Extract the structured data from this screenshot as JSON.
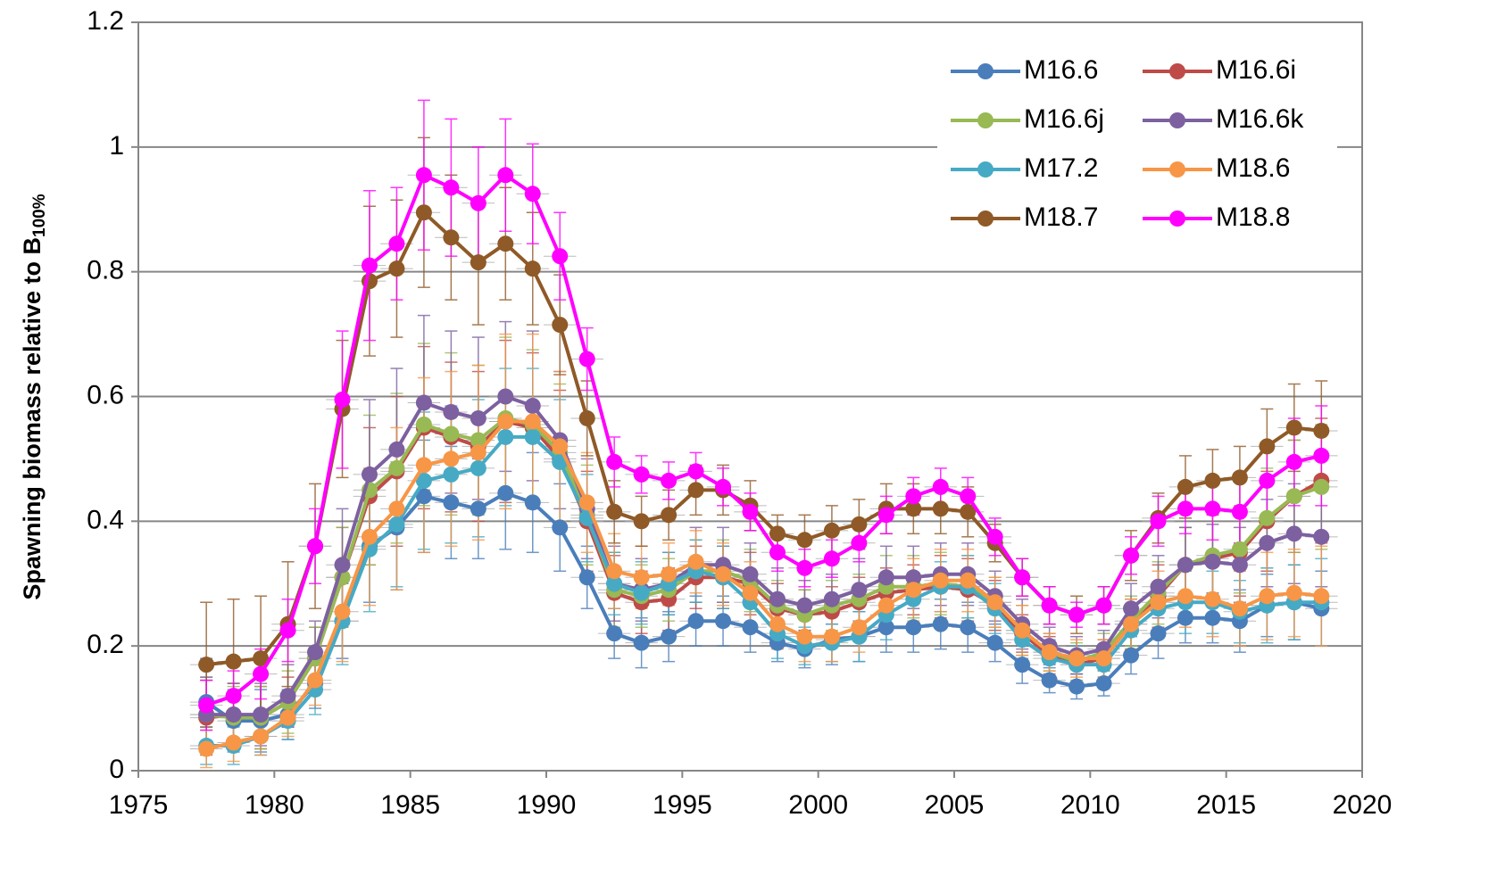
{
  "chart_data": {
    "type": "line",
    "ylabel": "Spawning biomass relative to B",
    "ylabel_subscript": "100%",
    "x": [
      1977.5,
      1978.5,
      1979.5,
      1980.5,
      1981.5,
      1982.5,
      1983.5,
      1984.5,
      1985.5,
      1986.5,
      1987.5,
      1988.5,
      1989.5,
      1990.5,
      1991.5,
      1992.5,
      1993.5,
      1994.5,
      1995.5,
      1996.5,
      1997.5,
      1998.5,
      1999.5,
      2000.5,
      2001.5,
      2002.5,
      2003.5,
      2004.5,
      2005.5,
      2006.5,
      2007.5,
      2008.5,
      2009.5,
      2010.5,
      2011.5,
      2012.5,
      2013.5,
      2014.5,
      2015.5,
      2016.5,
      2017.5,
      2018.5
    ],
    "x_error": 0.6,
    "xlim": [
      1975,
      2020
    ],
    "xticks": [
      1975,
      1980,
      1985,
      1990,
      1995,
      2000,
      2005,
      2010,
      2015,
      2020
    ],
    "ylim": [
      0,
      1.2
    ],
    "yticks": [
      0,
      0.2,
      0.4,
      0.6,
      0.8,
      1,
      1.2
    ],
    "grid": true,
    "legend": "upper right",
    "series": [
      {
        "name": "M16.6",
        "color": "#4a7ebb",
        "values": [
          0.11,
          0.08,
          0.08,
          0.09,
          0.14,
          0.24,
          0.36,
          0.39,
          0.44,
          0.43,
          0.42,
          0.445,
          0.43,
          0.39,
          0.31,
          0.22,
          0.205,
          0.215,
          0.24,
          0.24,
          0.23,
          0.205,
          0.195,
          0.21,
          0.215,
          0.23,
          0.23,
          0.235,
          0.23,
          0.205,
          0.17,
          0.145,
          0.135,
          0.14,
          0.185,
          0.22,
          0.245,
          0.245,
          0.24,
          0.265,
          0.27,
          0.26
        ],
        "errors": [
          0.07,
          0.05,
          0.05,
          0.04,
          0.04,
          0.06,
          0.09,
          0.1,
          0.09,
          0.09,
          0.08,
          0.09,
          0.08,
          0.07,
          0.05,
          0.04,
          0.04,
          0.04,
          0.04,
          0.04,
          0.04,
          0.03,
          0.03,
          0.04,
          0.04,
          0.04,
          0.04,
          0.04,
          0.04,
          0.03,
          0.03,
          0.02,
          0.02,
          0.02,
          0.03,
          0.04,
          0.04,
          0.04,
          0.05,
          0.05,
          0.06,
          0.06
        ]
      },
      {
        "name": "M16.6i",
        "color": "#be4b48",
        "values": [
          0.085,
          0.09,
          0.085,
          0.11,
          0.18,
          0.31,
          0.44,
          0.48,
          0.55,
          0.535,
          0.52,
          0.56,
          0.55,
          0.5,
          0.4,
          0.285,
          0.27,
          0.275,
          0.31,
          0.31,
          0.3,
          0.26,
          0.25,
          0.255,
          0.27,
          0.285,
          0.29,
          0.295,
          0.29,
          0.265,
          0.22,
          0.185,
          0.17,
          0.18,
          0.235,
          0.28,
          0.33,
          0.34,
          0.35,
          0.4,
          0.44,
          0.465
        ],
        "errors": [
          0.06,
          0.05,
          0.05,
          0.04,
          0.05,
          0.08,
          0.11,
          0.12,
          0.13,
          0.12,
          0.12,
          0.13,
          0.12,
          0.11,
          0.08,
          0.06,
          0.05,
          0.05,
          0.05,
          0.05,
          0.05,
          0.04,
          0.04,
          0.04,
          0.04,
          0.04,
          0.04,
          0.05,
          0.05,
          0.04,
          0.03,
          0.03,
          0.03,
          0.03,
          0.04,
          0.05,
          0.06,
          0.07,
          0.07,
          0.08,
          0.09,
          0.1
        ]
      },
      {
        "name": "M16.6j",
        "color": "#98b954",
        "values": [
          0.09,
          0.085,
          0.085,
          0.11,
          0.18,
          0.31,
          0.45,
          0.485,
          0.555,
          0.54,
          0.53,
          0.565,
          0.555,
          0.51,
          0.41,
          0.29,
          0.28,
          0.29,
          0.32,
          0.32,
          0.305,
          0.265,
          0.25,
          0.265,
          0.275,
          0.295,
          0.295,
          0.3,
          0.295,
          0.27,
          0.225,
          0.19,
          0.175,
          0.19,
          0.24,
          0.285,
          0.33,
          0.345,
          0.355,
          0.405,
          0.44,
          0.455
        ],
        "errors": [
          0.06,
          0.05,
          0.05,
          0.05,
          0.05,
          0.08,
          0.12,
          0.12,
          0.13,
          0.13,
          0.12,
          0.13,
          0.12,
          0.11,
          0.08,
          0.06,
          0.05,
          0.05,
          0.05,
          0.05,
          0.05,
          0.04,
          0.04,
          0.04,
          0.04,
          0.05,
          0.05,
          0.05,
          0.05,
          0.04,
          0.04,
          0.03,
          0.03,
          0.03,
          0.04,
          0.05,
          0.06,
          0.07,
          0.07,
          0.08,
          0.09,
          0.1
        ]
      },
      {
        "name": "M16.6k",
        "color": "#7d60a0",
        "values": [
          0.09,
          0.09,
          0.09,
          0.12,
          0.19,
          0.33,
          0.475,
          0.515,
          0.59,
          0.575,
          0.565,
          0.6,
          0.585,
          0.53,
          0.42,
          0.3,
          0.29,
          0.3,
          0.33,
          0.33,
          0.315,
          0.275,
          0.265,
          0.275,
          0.29,
          0.31,
          0.31,
          0.315,
          0.315,
          0.28,
          0.235,
          0.2,
          0.185,
          0.195,
          0.26,
          0.295,
          0.33,
          0.335,
          0.33,
          0.365,
          0.38,
          0.375
        ],
        "errors": [
          0.06,
          0.05,
          0.05,
          0.05,
          0.05,
          0.09,
          0.12,
          0.13,
          0.14,
          0.13,
          0.13,
          0.12,
          0.12,
          0.11,
          0.08,
          0.06,
          0.05,
          0.05,
          0.06,
          0.06,
          0.05,
          0.05,
          0.04,
          0.04,
          0.05,
          0.05,
          0.05,
          0.05,
          0.05,
          0.04,
          0.04,
          0.03,
          0.03,
          0.03,
          0.04,
          0.05,
          0.06,
          0.06,
          0.06,
          0.07,
          0.08,
          0.08
        ]
      },
      {
        "name": "M17.2",
        "color": "#46aac5",
        "values": [
          0.04,
          0.04,
          0.055,
          0.08,
          0.13,
          0.24,
          0.355,
          0.395,
          0.465,
          0.475,
          0.485,
          0.535,
          0.535,
          0.495,
          0.405,
          0.3,
          0.285,
          0.3,
          0.32,
          0.31,
          0.27,
          0.22,
          0.2,
          0.205,
          0.215,
          0.25,
          0.275,
          0.295,
          0.295,
          0.26,
          0.21,
          0.18,
          0.17,
          0.17,
          0.225,
          0.26,
          0.27,
          0.27,
          0.255,
          0.265,
          0.27,
          0.27
        ],
        "errors": [
          0.03,
          0.03,
          0.03,
          0.03,
          0.04,
          0.07,
          0.1,
          0.1,
          0.11,
          0.11,
          0.11,
          0.11,
          0.11,
          0.1,
          0.07,
          0.05,
          0.05,
          0.05,
          0.05,
          0.05,
          0.04,
          0.04,
          0.03,
          0.03,
          0.04,
          0.04,
          0.04,
          0.04,
          0.05,
          0.04,
          0.03,
          0.03,
          0.03,
          0.03,
          0.04,
          0.04,
          0.05,
          0.05,
          0.05,
          0.06,
          0.06,
          0.07
        ]
      },
      {
        "name": "M18.6",
        "color": "#f79646",
        "values": [
          0.035,
          0.045,
          0.055,
          0.085,
          0.145,
          0.255,
          0.375,
          0.42,
          0.49,
          0.5,
          0.51,
          0.56,
          0.56,
          0.52,
          0.43,
          0.32,
          0.31,
          0.315,
          0.335,
          0.315,
          0.285,
          0.235,
          0.215,
          0.215,
          0.23,
          0.265,
          0.29,
          0.305,
          0.305,
          0.27,
          0.225,
          0.19,
          0.18,
          0.18,
          0.235,
          0.27,
          0.28,
          0.275,
          0.26,
          0.28,
          0.285,
          0.28
        ],
        "errors": [
          0.03,
          0.03,
          0.03,
          0.03,
          0.04,
          0.08,
          0.11,
          0.13,
          0.14,
          0.14,
          0.14,
          0.14,
          0.14,
          0.12,
          0.08,
          0.06,
          0.05,
          0.05,
          0.05,
          0.05,
          0.05,
          0.04,
          0.04,
          0.04,
          0.04,
          0.04,
          0.05,
          0.05,
          0.05,
          0.04,
          0.04,
          0.03,
          0.03,
          0.03,
          0.04,
          0.05,
          0.05,
          0.06,
          0.06,
          0.07,
          0.07,
          0.08
        ]
      },
      {
        "name": "M18.7",
        "color": "#8f5a27",
        "values": [
          0.17,
          0.175,
          0.18,
          0.235,
          0.36,
          0.58,
          0.785,
          0.805,
          0.895,
          0.855,
          0.815,
          0.845,
          0.805,
          0.715,
          0.565,
          0.415,
          0.4,
          0.41,
          0.45,
          0.45,
          0.425,
          0.38,
          0.37,
          0.385,
          0.395,
          0.42,
          0.42,
          0.42,
          0.415,
          0.365,
          0.31,
          0.265,
          0.25,
          0.265,
          0.345,
          0.405,
          0.455,
          0.465,
          0.47,
          0.52,
          0.55,
          0.545
        ],
        "errors": [
          0.1,
          0.1,
          0.1,
          0.1,
          0.1,
          0.11,
          0.12,
          0.11,
          0.12,
          0.1,
          0.1,
          0.09,
          0.09,
          0.08,
          0.06,
          0.05,
          0.04,
          0.04,
          0.04,
          0.04,
          0.04,
          0.03,
          0.04,
          0.04,
          0.04,
          0.04,
          0.04,
          0.04,
          0.04,
          0.03,
          0.03,
          0.03,
          0.03,
          0.03,
          0.04,
          0.04,
          0.05,
          0.05,
          0.05,
          0.06,
          0.07,
          0.08
        ]
      },
      {
        "name": "M18.8",
        "color": "#ff00ff",
        "values": [
          0.105,
          0.12,
          0.155,
          0.225,
          0.36,
          0.595,
          0.81,
          0.845,
          0.955,
          0.935,
          0.91,
          0.955,
          0.925,
          0.825,
          0.66,
          0.495,
          0.475,
          0.465,
          0.48,
          0.455,
          0.415,
          0.35,
          0.325,
          0.34,
          0.365,
          0.41,
          0.44,
          0.455,
          0.44,
          0.375,
          0.31,
          0.265,
          0.25,
          0.265,
          0.345,
          0.4,
          0.42,
          0.42,
          0.415,
          0.465,
          0.495,
          0.505
        ],
        "errors": [
          0.04,
          0.04,
          0.04,
          0.05,
          0.06,
          0.11,
          0.12,
          0.09,
          0.12,
          0.11,
          0.09,
          0.09,
          0.08,
          0.07,
          0.05,
          0.04,
          0.03,
          0.03,
          0.03,
          0.03,
          0.03,
          0.03,
          0.03,
          0.03,
          0.03,
          0.03,
          0.03,
          0.03,
          0.03,
          0.03,
          0.03,
          0.03,
          0.02,
          0.03,
          0.03,
          0.04,
          0.04,
          0.05,
          0.05,
          0.06,
          0.07,
          0.08
        ]
      }
    ]
  }
}
